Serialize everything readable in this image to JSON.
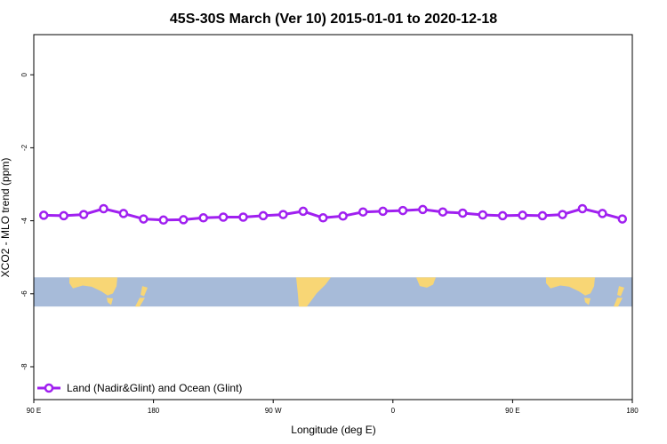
{
  "chart_data": {
    "type": "line",
    "title": "45S-30S March (Ver 10)   2015-01-01 to 2020-12-18",
    "xlabel": "Longitude (deg E)",
    "ylabel": "XCO2 - MLO trend (ppm)",
    "x_tick_labels": [
      "90 E",
      "180",
      "90 W",
      "0",
      "90 E",
      "180"
    ],
    "y_tick_labels": [
      "0",
      "-2",
      "-4",
      "-6",
      "-8"
    ],
    "y_ticks": [
      0,
      -2,
      -4,
      -6,
      -8
    ],
    "ylim": [
      -8.9,
      1.1
    ],
    "x_range": [
      -270,
      180
    ],
    "grid": false,
    "legend_position": "bottom-left",
    "series": [
      {
        "name": "Land (Nadir&Glint) and Ocean (Glint)",
        "color": "#a020f0",
        "x": [
          -262.5,
          -247.5,
          -232.5,
          -217.5,
          -202.5,
          -187.5,
          -172.5,
          -157.5,
          -142.5,
          -127.5,
          -112.5,
          -97.5,
          -82.5,
          -67.5,
          -52.5,
          -37.5,
          -22.5,
          -7.5,
          7.5,
          22.5,
          37.5,
          52.5,
          67.5,
          82.5,
          97.5,
          112.5,
          127.5,
          142.5,
          157.5,
          172.5
        ],
        "values": [
          -3.85,
          -3.86,
          -3.83,
          -3.67,
          -3.8,
          -3.95,
          -3.98,
          -3.97,
          -3.92,
          -3.9,
          -3.9,
          -3.86,
          -3.83,
          -3.74,
          -3.92,
          -3.87,
          -3.76,
          -3.74,
          -3.72,
          -3.69,
          -3.76,
          -3.79,
          -3.84,
          -3.86,
          -3.85,
          -3.86,
          -3.83,
          -3.67,
          -3.8,
          -3.95
        ]
      }
    ],
    "map_band": {
      "y_range": [
        -5.55,
        -6.35
      ],
      "ocean_color": "#a7bbd9",
      "land_color": "#f8d675"
    }
  }
}
